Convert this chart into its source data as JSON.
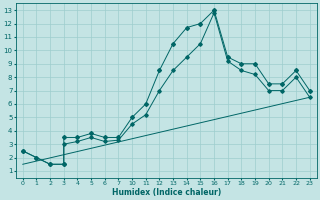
{
  "xlabel": "Humidex (Indice chaleur)",
  "background_color": "#c4e4e4",
  "grid_color": "#9ecece",
  "line_color": "#006666",
  "xlim": [
    -0.5,
    21.5
  ],
  "ylim": [
    0.5,
    13.5
  ],
  "x_labels": [
    "0",
    "1",
    "2",
    "3",
    "4",
    "5",
    "6",
    "7",
    "10",
    "11",
    "12",
    "13",
    "14",
    "15",
    "16",
    "17",
    "18",
    "19",
    "20",
    "21",
    "22",
    "23"
  ],
  "yticks": [
    1,
    2,
    3,
    4,
    5,
    6,
    7,
    8,
    9,
    10,
    11,
    12,
    13
  ],
  "line1_xi": [
    0,
    1,
    2,
    3,
    3,
    4,
    5,
    6,
    7,
    8,
    9,
    10,
    11,
    12,
    13,
    14,
    15,
    16,
    17,
    18,
    19,
    20,
    21
  ],
  "line1_y": [
    2.5,
    2.0,
    1.5,
    1.5,
    3.5,
    3.5,
    3.8,
    3.5,
    3.5,
    5.0,
    6.0,
    8.5,
    10.5,
    11.7,
    12.0,
    13.0,
    9.5,
    9.0,
    9.0,
    7.5,
    7.5,
    8.5,
    7.0
  ],
  "line2_xi": [
    0,
    1,
    2,
    3,
    3,
    4,
    5,
    6,
    7,
    8,
    9,
    10,
    11,
    12,
    13,
    14,
    15,
    16,
    17,
    18,
    19,
    20,
    21
  ],
  "line2_y": [
    2.5,
    2.0,
    1.5,
    1.5,
    3.0,
    3.2,
    3.5,
    3.2,
    3.3,
    4.5,
    5.2,
    7.0,
    8.5,
    9.5,
    10.5,
    12.8,
    9.2,
    8.5,
    8.2,
    7.0,
    7.0,
    8.0,
    6.5
  ],
  "line3_xi": [
    0,
    21
  ],
  "line3_y": [
    1.5,
    6.5
  ]
}
